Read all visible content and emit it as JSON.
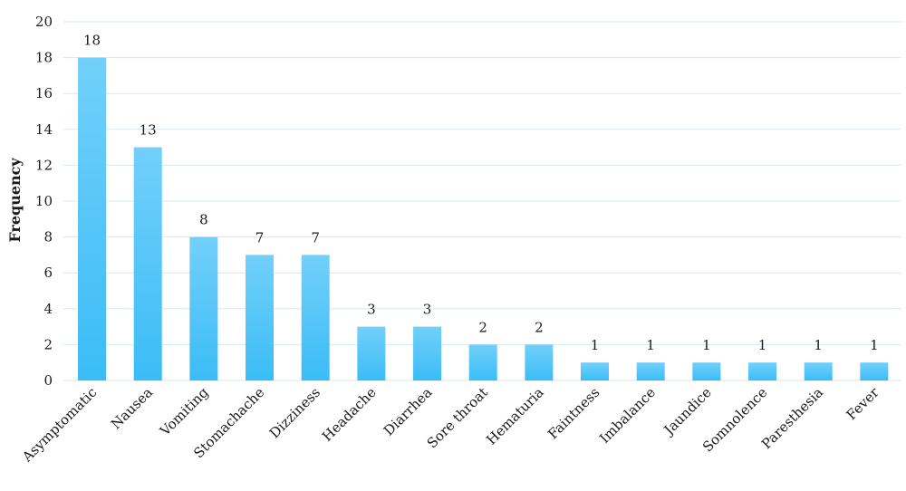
{
  "chart_data": {
    "type": "bar",
    "ylabel": "Frequency",
    "xlabel": "",
    "ylim": [
      0,
      20
    ],
    "yticks": [
      0,
      2,
      4,
      6,
      8,
      10,
      12,
      14,
      16,
      18,
      20
    ],
    "grid": true,
    "data_labels": true,
    "categories": [
      "Asymptomatic",
      "Nausea",
      "Vomiting",
      "Stomachache",
      "Dizziness",
      "Headache",
      "Diarrhea",
      "Sore throat",
      "Hematuria",
      "Faintness",
      "Imbalance",
      "Jaundice",
      "Somnolence",
      "Paresthesia",
      "Fever"
    ],
    "values": [
      18,
      13,
      8,
      7,
      7,
      3,
      3,
      2,
      2,
      1,
      1,
      1,
      1,
      1,
      1
    ],
    "colors": {
      "bar_top": "#72d0fa",
      "bar_bottom": "#3bbcf6",
      "grid": "#d9e7ef"
    }
  }
}
